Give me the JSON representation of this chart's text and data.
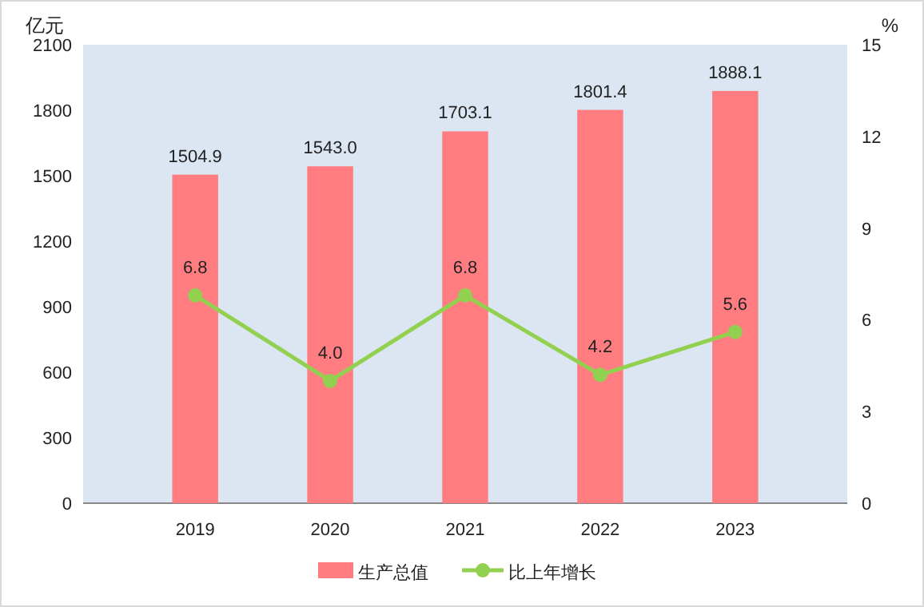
{
  "chart_data": {
    "type": "bar",
    "categories": [
      "2019",
      "2020",
      "2021",
      "2022",
      "2023"
    ],
    "series": [
      {
        "name": "生产总值",
        "color": "#ff7c80",
        "values": [
          1504.9,
          1543.0,
          1703.1,
          1801.4,
          1888.1
        ],
        "value_labels": [
          "1504.9",
          "1543.0",
          "1703.1",
          "1801.4",
          "1888.1"
        ]
      },
      {
        "name": "比上年增长",
        "type": "line",
        "axis": "y2",
        "color": "#92d050",
        "values": [
          6.8,
          4.0,
          6.8,
          4.2,
          5.6
        ],
        "value_labels": [
          "6.8",
          "4.0",
          "6.8",
          "4.2",
          "5.6"
        ],
        "marker": "circle"
      }
    ],
    "ylabel": "亿元",
    "y2label": "%",
    "ylim": [
      0,
      2100
    ],
    "yticks": [
      0,
      300,
      600,
      900,
      1200,
      1500,
      1800,
      2100
    ],
    "y2lim": [
      0,
      15
    ],
    "y2ticks": [
      0,
      3,
      6,
      9,
      12,
      15
    ],
    "legend": "bottom",
    "grid": false
  }
}
